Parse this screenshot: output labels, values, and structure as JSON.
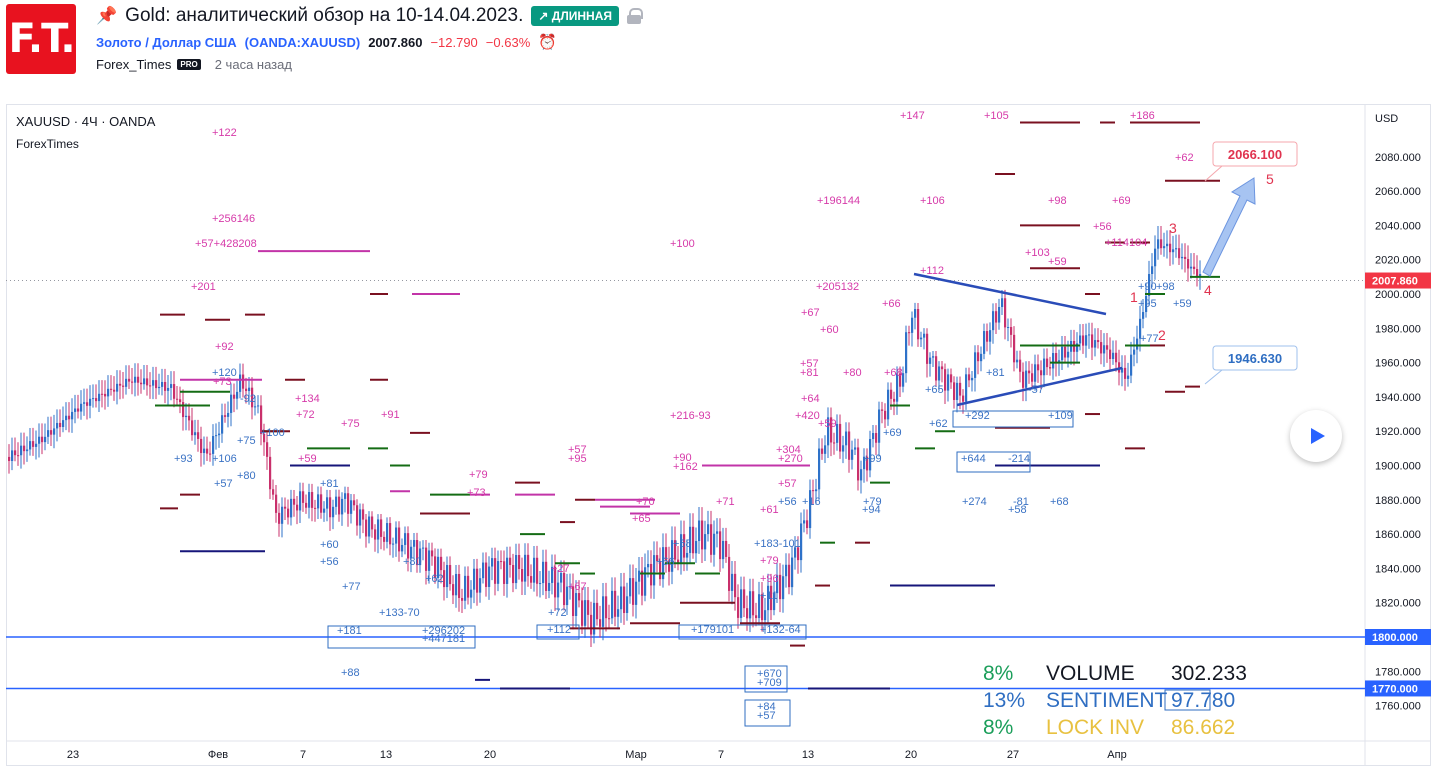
{
  "header": {
    "logo_text": "F.T.",
    "title": "Gold: аналитический обзор на 10-14.04.2023.",
    "badge": "↗ ДЛИННАЯ",
    "symbol_name": "Золото / Доллар США",
    "symbol_code": "OANDA:XAUUSD",
    "symbol_open": "(",
    "symbol_close": ")",
    "price": "2007.860",
    "change": "−12.790",
    "change_pct": "−0.63%",
    "author": "Forex_Times",
    "pro_badge": "PRO",
    "time_ago": "2 часа назад"
  },
  "chart": {
    "legend_symbol": "XAUUSD · 4Ч · OANDA",
    "legend_sub": "ForexTimes",
    "currency": "USD",
    "current_price_label": "2007.860",
    "y_ticks": [
      "2080.000",
      "2060.000",
      "2040.000",
      "2020.000",
      "2000.000",
      "1980.000",
      "1960.000",
      "1940.000",
      "1920.000",
      "1900.000",
      "1880.000",
      "1860.000",
      "1840.000",
      "1820.000",
      "1800.000",
      "1780.000",
      "1770.000",
      "1760.000"
    ],
    "x_ticks": [
      "23",
      "Фев",
      "7",
      "13",
      "20",
      "Мар",
      "7",
      "13",
      "20",
      "27",
      "Апр"
    ],
    "callout_top": "2066.100",
    "callout_bottom": "1946.630",
    "wave_labels": [
      "1",
      "2",
      "3",
      "4",
      "5"
    ],
    "stats": {
      "rows": [
        {
          "pct": "8%",
          "label": "VOLUME",
          "value": "302.233",
          "pct_color": "#1b9e5a",
          "label_color": "#131722",
          "value_color": "#131722"
        },
        {
          "pct": "13%",
          "label": "SENTIMENT",
          "value": "97.780",
          "pct_color": "#2f6ec2",
          "label_color": "#2f6ec2",
          "value_color": "#2f6ec2"
        },
        {
          "pct": "8%",
          "label": "LOCK INV",
          "value": "86.662",
          "pct_color": "#1b9e5a",
          "label_color": "#e8c140",
          "value_color": "#e8c140"
        }
      ]
    },
    "colors": {
      "bull": "#2e72c9",
      "bear": "#c9306b",
      "level_pink": "#c234a8",
      "level_darkred": "#7a1020",
      "level_green": "#146c14",
      "level_navy": "#16157a",
      "hline": "#2962ff",
      "triangle": "#2a4cb8",
      "current": "#f23645"
    },
    "annotations_pink": [
      "+122",
      "+256146",
      "+57+428208",
      "+201",
      "+100",
      "+147",
      "+105",
      "+186",
      "+62",
      "+196144",
      "+106",
      "+98",
      "+69",
      "+56",
      "+114104",
      "+103",
      "+59",
      "+112",
      "+205132",
      "+66",
      "+67",
      "+60",
      "+57",
      "+81",
      "+80",
      "+68",
      "+64",
      "+92",
      "+73",
      "+134",
      "+72",
      "+75",
      "+91",
      "+59",
      "+79",
      "+73",
      "+57",
      "+95",
      "+90",
      "+162",
      "+70",
      "+65",
      "+71",
      "+61",
      "+304",
      "+270",
      "+216-93",
      "+420",
      "+59",
      "+57",
      "+27",
      "+67",
      "+79",
      "+96"
    ],
    "annotations_blue": [
      "+120",
      "-92",
      "+75",
      "+80",
      "+93",
      "+106",
      "+57",
      "+100",
      "+81",
      "+60",
      "+56",
      "+80",
      "+77",
      "+62",
      "+133-70",
      "+181",
      "+296202",
      "+447181",
      "+88",
      "+112",
      "+72",
      "+58",
      "+66",
      "+179101",
      "+132-64",
      "+183-101",
      "+11",
      "+56",
      "+16",
      "+99",
      "+79",
      "+94",
      "+69",
      "+62",
      "+292",
      "+109",
      "+644",
      "-214",
      "+274",
      "-81",
      "+58",
      "+68",
      "+65",
      "+81",
      "-57",
      "+90",
      "+98",
      "+95",
      "+59",
      "+77",
      "+670",
      "+709",
      "+84",
      "+57"
    ]
  }
}
